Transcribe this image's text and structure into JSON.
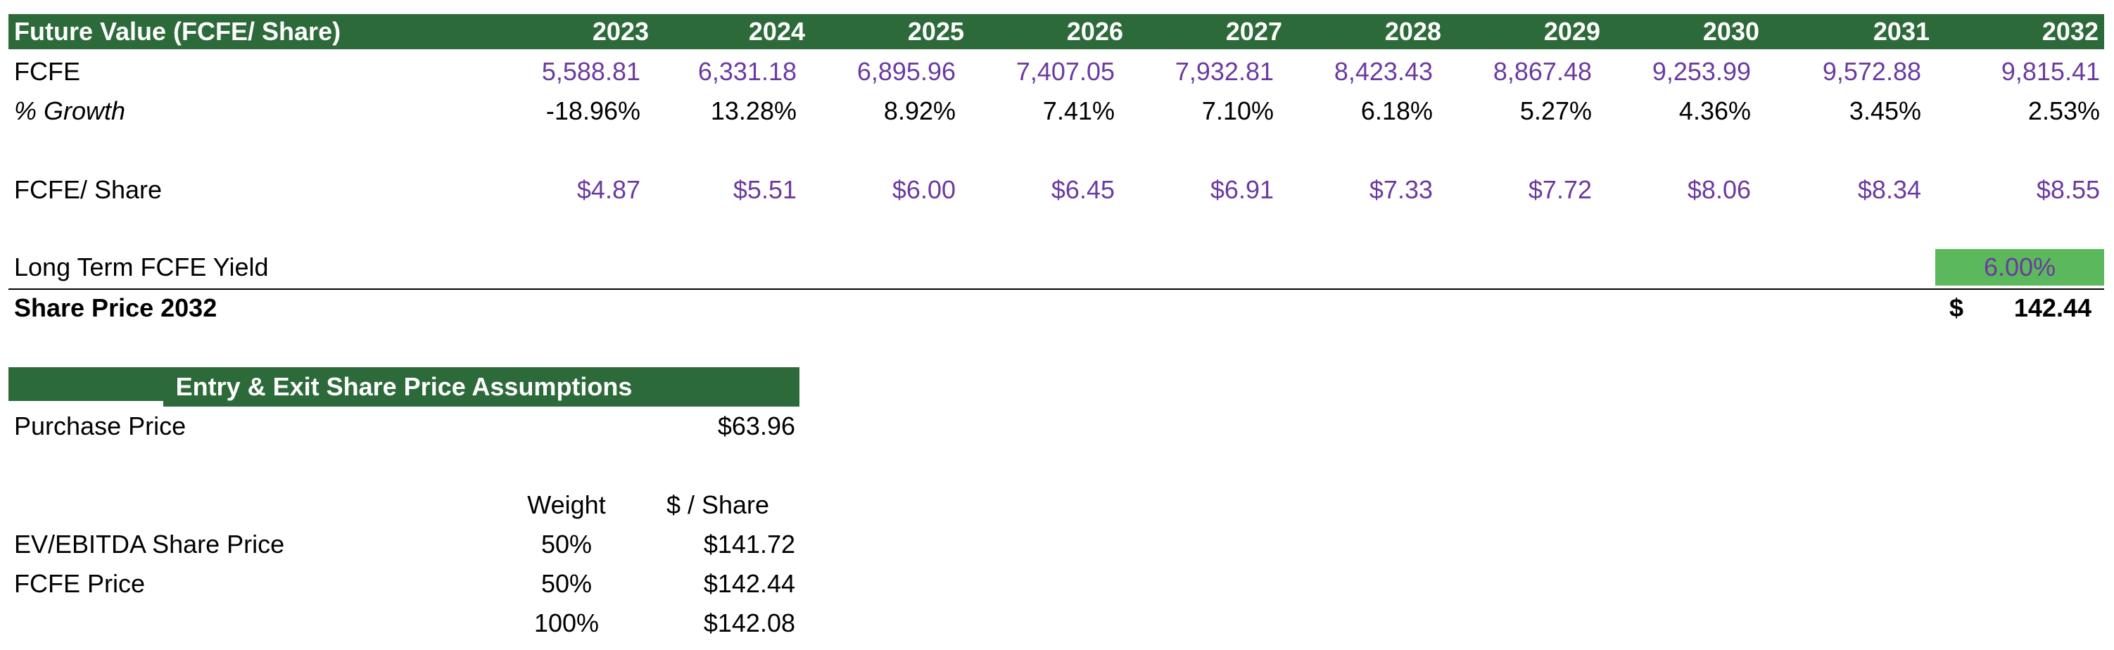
{
  "fcfe_table": {
    "title": "Future Value (FCFE/ Share)",
    "years": [
      "2023",
      "2024",
      "2025",
      "2026",
      "2027",
      "2028",
      "2029",
      "2030",
      "2031",
      "2032"
    ],
    "fcfe_label": "FCFE",
    "fcfe": [
      "5,588.81",
      "6,331.18",
      "6,895.96",
      "7,407.05",
      "7,932.81",
      "8,423.43",
      "8,867.48",
      "9,253.99",
      "9,572.88",
      "9,815.41"
    ],
    "growth_label": "% Growth",
    "growth": [
      "-18.96%",
      "13.28%",
      "8.92%",
      "7.41%",
      "7.10%",
      "6.18%",
      "5.27%",
      "4.36%",
      "3.45%",
      "2.53%"
    ],
    "per_share_label": "FCFE/ Share",
    "per_share": [
      "$4.87",
      "$5.51",
      "$6.00",
      "$6.45",
      "$6.91",
      "$7.33",
      "$7.72",
      "$8.06",
      "$8.34",
      "$8.55"
    ],
    "yield_label": "Long Term FCFE Yield",
    "yield_value": "6.00%",
    "share_price_label": "Share Price 2032",
    "share_price_currency": "$",
    "share_price_value": "142.44"
  },
  "assumptions": {
    "title": "Entry & Exit Share Price Assumptions",
    "purchase_label": "Purchase Price",
    "purchase_value": "$63.96",
    "col_weight": "Weight",
    "col_share": "$ / Share",
    "rows": [
      {
        "label": "EV/EBITDA Share Price",
        "weight": "50%",
        "price": "$141.72"
      },
      {
        "label": "FCFE Price",
        "weight": "50%",
        "price": "$142.44"
      },
      {
        "label": "",
        "weight": "100%",
        "price": "$142.08"
      }
    ]
  },
  "colors": {
    "header_green": "#2d6a3a",
    "input_purple": "#6b3aa0",
    "yield_green": "#5cb85c"
  }
}
